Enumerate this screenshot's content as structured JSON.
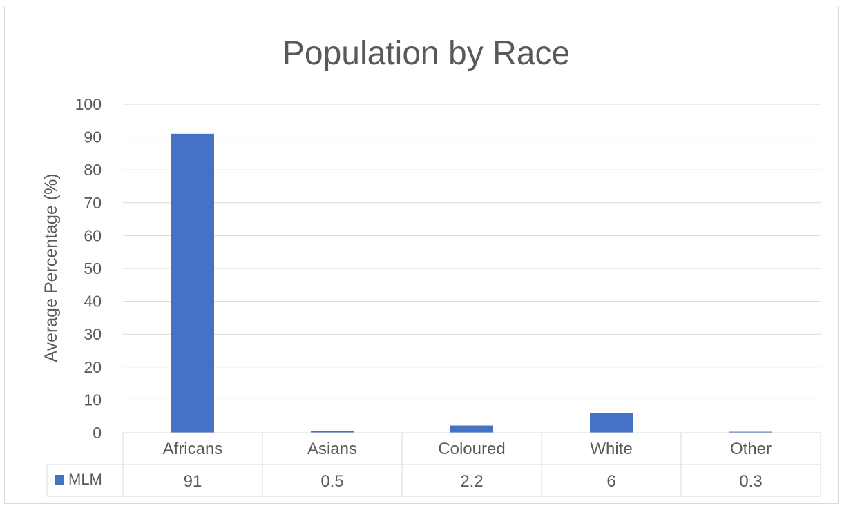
{
  "chart_data": {
    "type": "bar",
    "title": "Population by Race",
    "xlabel": "",
    "ylabel": "Average Percentage (%)",
    "categories": [
      "Africans",
      "Asians",
      "Coloured",
      "White",
      "Other"
    ],
    "series": [
      {
        "name": "MLM",
        "values": [
          91,
          0.5,
          2.2,
          6,
          0.3
        ]
      }
    ],
    "value_labels": [
      "91",
      "0.5",
      "2.2",
      "6",
      "0.3"
    ],
    "ylim": [
      0,
      100
    ],
    "yticks": [
      0,
      10,
      20,
      30,
      40,
      50,
      60,
      70,
      80,
      90,
      100
    ],
    "grid": true,
    "data_table": true,
    "legend": "data-table-left",
    "bar_color": "#4472c4",
    "grid_color": "#d9d9d9",
    "text_color": "#595959"
  }
}
